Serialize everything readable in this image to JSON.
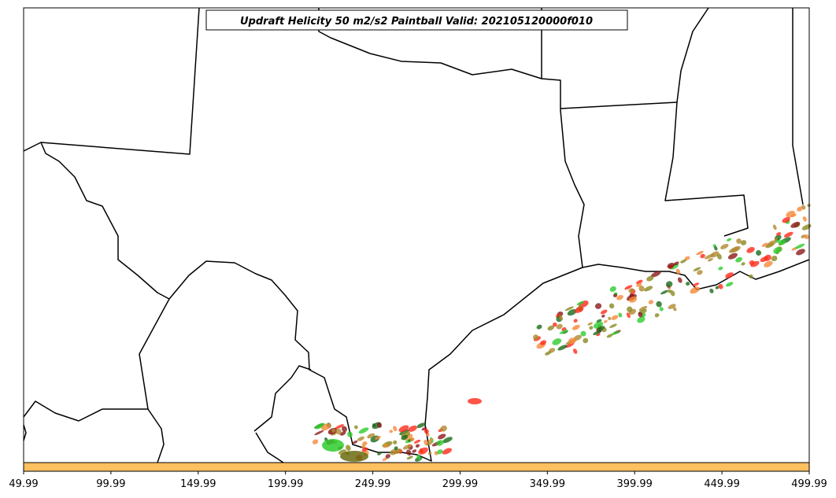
{
  "title": "Updraft Helicity 50 m2/s2 Paintball Valid: 202105120000f010",
  "colorbar": {
    "xlim": [
      49.99,
      499.99
    ],
    "xticks": [
      49.99,
      99.99,
      149.99,
      199.99,
      249.99,
      299.99,
      349.99,
      399.99,
      449.99,
      499.99
    ],
    "color": "#ffc060"
  }
}
